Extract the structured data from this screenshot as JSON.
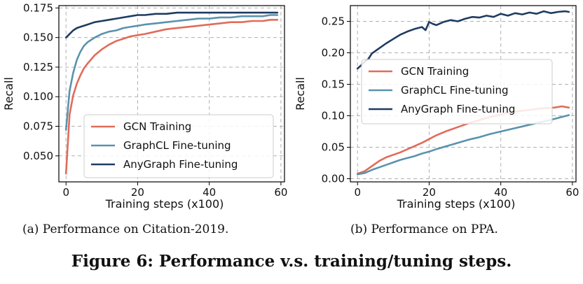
{
  "figure_title": "Figure 6: Performance v.s. training/tuning steps.",
  "colors": {
    "gcn": "#e06c5a",
    "graphcl": "#5a93ad",
    "anygraph": "#1f3c60",
    "grid": "#b0b0b0"
  },
  "chart_data": [
    {
      "type": "line",
      "caption": "(a)  Performance on Citation-2019.",
      "xlabel": "Training steps (x100)",
      "ylabel": "Recall",
      "xlim": [
        -2,
        61
      ],
      "ylim": [
        0.028,
        0.177
      ],
      "xticks": [
        0,
        20,
        40,
        60
      ],
      "yticks": [
        0.05,
        0.075,
        0.1,
        0.125,
        0.15,
        0.175
      ],
      "ytick_labels": [
        "0.050",
        "0.075",
        "0.100",
        "0.125",
        "0.150",
        "0.175"
      ],
      "grid": true,
      "legend_position": "bottom-right",
      "series": [
        {
          "name": "GCN Training",
          "x": [
            0,
            1,
            2,
            3,
            4,
            5,
            6,
            8,
            10,
            12,
            14,
            16,
            18,
            20,
            22,
            25,
            28,
            31,
            34,
            37,
            40,
            43,
            46,
            49,
            52,
            55,
            57,
            59
          ],
          "y": [
            0.035,
            0.085,
            0.101,
            0.111,
            0.118,
            0.124,
            0.128,
            0.135,
            0.14,
            0.144,
            0.147,
            0.149,
            0.151,
            0.152,
            0.153,
            0.155,
            0.157,
            0.158,
            0.159,
            0.16,
            0.161,
            0.162,
            0.163,
            0.163,
            0.164,
            0.164,
            0.165,
            0.165
          ]
        },
        {
          "name": "GraphCL Fine-tuning",
          "x": [
            0,
            1,
            2,
            3,
            4,
            5,
            6,
            8,
            10,
            12,
            14,
            16,
            18,
            20,
            22,
            25,
            28,
            31,
            34,
            37,
            40,
            43,
            46,
            49,
            52,
            55,
            57,
            59
          ],
          "y": [
            0.072,
            0.105,
            0.12,
            0.131,
            0.138,
            0.143,
            0.146,
            0.15,
            0.153,
            0.155,
            0.156,
            0.158,
            0.159,
            0.16,
            0.161,
            0.162,
            0.163,
            0.164,
            0.165,
            0.166,
            0.166,
            0.167,
            0.167,
            0.168,
            0.168,
            0.168,
            0.169,
            0.169
          ]
        },
        {
          "name": "AnyGraph Fine-tuning",
          "x": [
            0,
            1,
            2,
            3,
            4,
            6,
            8,
            10,
            12,
            14,
            16,
            18,
            20,
            22,
            25,
            28,
            31,
            34,
            37,
            40,
            43,
            46,
            49,
            52,
            55,
            57,
            59
          ],
          "y": [
            0.15,
            0.153,
            0.156,
            0.158,
            0.159,
            0.161,
            0.163,
            0.164,
            0.165,
            0.166,
            0.167,
            0.168,
            0.169,
            0.169,
            0.17,
            0.17,
            0.171,
            0.171,
            0.171,
            0.171,
            0.171,
            0.171,
            0.171,
            0.171,
            0.171,
            0.171,
            0.171
          ]
        }
      ]
    },
    {
      "type": "line",
      "caption": "(b)  Performance on PPA.",
      "xlabel": "Training steps (x100)",
      "ylabel": "Recall",
      "xlim": [
        -2,
        61
      ],
      "ylim": [
        -0.005,
        0.275
      ],
      "xticks": [
        0,
        20,
        40,
        60
      ],
      "yticks": [
        0.0,
        0.05,
        0.1,
        0.15,
        0.2,
        0.25
      ],
      "ytick_labels": [
        "0.00",
        "0.05",
        "0.10",
        "0.15",
        "0.20",
        "0.25"
      ],
      "grid": true,
      "legend_position": "center",
      "series": [
        {
          "name": "GCN Training",
          "x": [
            0,
            2,
            4,
            6,
            8,
            10,
            12,
            14,
            16,
            18,
            20,
            22,
            25,
            28,
            31,
            34,
            37,
            40,
            43,
            46,
            49,
            52,
            55,
            57,
            59
          ],
          "y": [
            0.008,
            0.012,
            0.02,
            0.028,
            0.034,
            0.038,
            0.042,
            0.047,
            0.052,
            0.057,
            0.063,
            0.069,
            0.076,
            0.082,
            0.088,
            0.093,
            0.098,
            0.102,
            0.106,
            0.108,
            0.11,
            0.112,
            0.113,
            0.115,
            0.113
          ]
        },
        {
          "name": "GraphCL Fine-tuning",
          "x": [
            0,
            2,
            4,
            6,
            8,
            10,
            12,
            14,
            16,
            18,
            20,
            22,
            25,
            28,
            31,
            34,
            37,
            40,
            43,
            46,
            49,
            52,
            55,
            57,
            59
          ],
          "y": [
            0.007,
            0.009,
            0.014,
            0.018,
            0.022,
            0.026,
            0.03,
            0.033,
            0.036,
            0.04,
            0.043,
            0.047,
            0.052,
            0.057,
            0.062,
            0.066,
            0.071,
            0.075,
            0.079,
            0.083,
            0.087,
            0.091,
            0.095,
            0.098,
            0.101
          ]
        },
        {
          "name": "AnyGraph Fine-tuning",
          "x": [
            0,
            1,
            2,
            3,
            4,
            5,
            6,
            8,
            10,
            12,
            14,
            16,
            18,
            19,
            20,
            21,
            22,
            24,
            26,
            28,
            30,
            32,
            34,
            36,
            38,
            40,
            42,
            44,
            46,
            48,
            50,
            52,
            54,
            56,
            58,
            59
          ],
          "y": [
            0.175,
            0.18,
            0.186,
            0.19,
            0.199,
            0.203,
            0.207,
            0.215,
            0.222,
            0.229,
            0.234,
            0.238,
            0.241,
            0.236,
            0.249,
            0.246,
            0.244,
            0.249,
            0.252,
            0.25,
            0.254,
            0.257,
            0.256,
            0.259,
            0.257,
            0.262,
            0.259,
            0.263,
            0.261,
            0.264,
            0.262,
            0.266,
            0.263,
            0.265,
            0.266,
            0.265
          ]
        }
      ]
    }
  ]
}
